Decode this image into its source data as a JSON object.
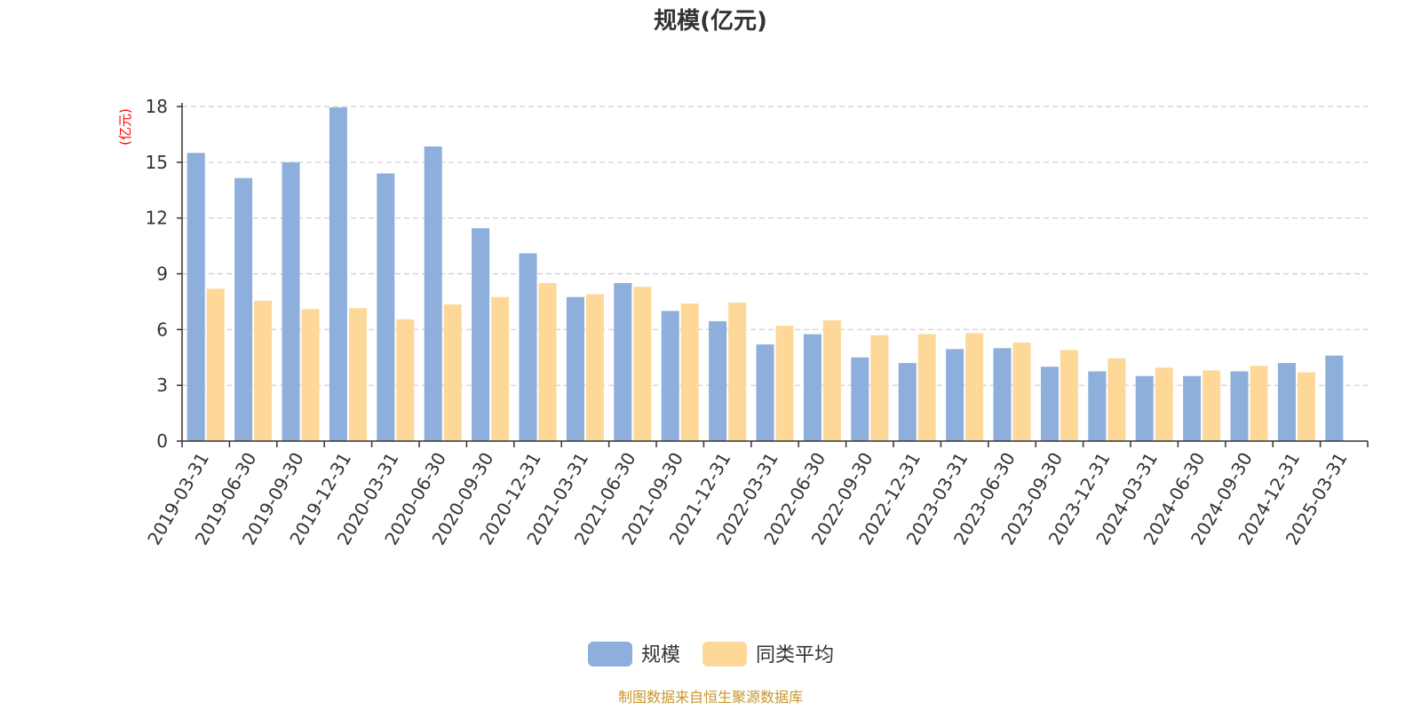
{
  "chart_data": {
    "type": "bar",
    "title": "规模(亿元)",
    "ylabel": "(亿元)",
    "xlabel": "",
    "ylim": [
      0,
      18
    ],
    "yticks": [
      0,
      3,
      6,
      9,
      12,
      15,
      18
    ],
    "grid": "horizontal-dashed",
    "legend_position": "bottom-center",
    "categories": [
      "2019-03-31",
      "2019-06-30",
      "2019-09-30",
      "2019-12-31",
      "2020-03-31",
      "2020-06-30",
      "2020-09-30",
      "2020-12-31",
      "2021-03-31",
      "2021-06-30",
      "2021-09-30",
      "2021-12-31",
      "2022-03-31",
      "2022-06-30",
      "2022-09-30",
      "2022-12-31",
      "2023-03-31",
      "2023-06-30",
      "2023-09-30",
      "2023-12-31",
      "2024-03-31",
      "2024-06-30",
      "2024-09-30",
      "2024-12-31",
      "2025-03-31"
    ],
    "series": [
      {
        "name": "规模",
        "color": "#8eaedb",
        "values": [
          15.5,
          14.15,
          15.0,
          17.95,
          14.4,
          15.85,
          11.45,
          10.1,
          7.75,
          8.5,
          7.0,
          6.45,
          5.2,
          5.75,
          4.5,
          4.2,
          4.95,
          5.0,
          4.0,
          3.75,
          3.5,
          3.5,
          3.75,
          4.2,
          4.6
        ]
      },
      {
        "name": "同类平均",
        "color": "#fdd899",
        "values": [
          8.2,
          7.55,
          7.1,
          7.15,
          6.55,
          7.35,
          7.75,
          8.5,
          7.9,
          8.3,
          7.4,
          7.45,
          6.2,
          6.5,
          5.7,
          5.75,
          5.8,
          5.3,
          4.9,
          4.45,
          3.95,
          3.8,
          4.05,
          3.7,
          null
        ]
      }
    ],
    "source_note": "制图数据来自恒生聚源数据库"
  }
}
